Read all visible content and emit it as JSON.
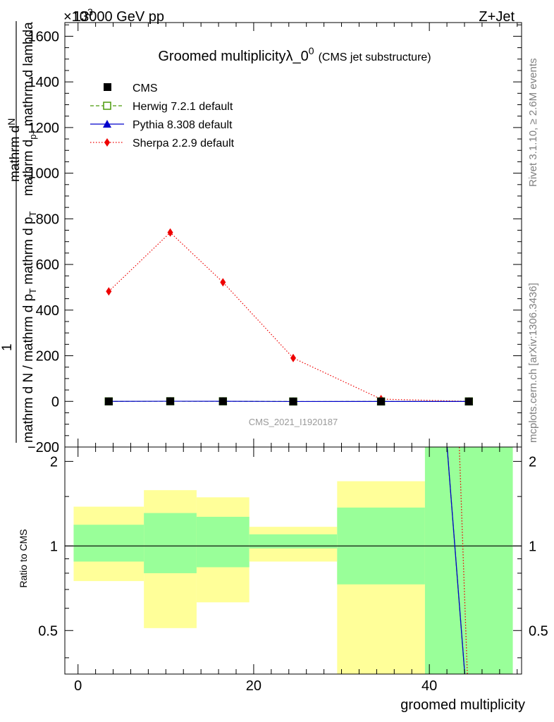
{
  "header": {
    "energy": "13000 GeV pp",
    "process": "Z+Jet",
    "exponent": "×10",
    "exponent_power": "3"
  },
  "side_labels": {
    "rivet": "Rivet 3.1.10, ≥ 2.6M events",
    "mcplots": "mcplots.cern.ch [arXiv:1306.3436]"
  },
  "colors": {
    "cms": "#000000",
    "herwig": "#4a9a0a",
    "pythia": "#0000cc",
    "sherpa": "#ee0000",
    "band_inner": "#99ff99",
    "band_outer": "#ffff99"
  },
  "chart_data": [
    {
      "type": "line",
      "title": "Groomed multiplicityλ_0",
      "title_sup": "0",
      "subtitle": "(CMS jet substructure)",
      "analysis_label": "CMS_2021_I1920187",
      "ylabel_numerator": "mathrm d",
      "ylabel_numerator_N": "N",
      "ylabel_one": "1",
      "ylabel_denominator": "mathrm d N / mathrm d p",
      "ylabel_denominator_sub": "T",
      "ylabel_denominator_tail": "mathrm d p",
      "ylabel_denominator_tail_sub": "T",
      "ylabel_garbled": "mathrm d",
      "ylabel_garbled_sub": "p",
      "ylabel_garbled_sub2": "T",
      "ylabel_garbled_tail": "mathrm d lambda",
      "ylim": [
        -200,
        1660
      ],
      "xlim": [
        -1.5,
        50.5
      ],
      "yticks": [
        -200,
        0,
        200,
        400,
        600,
        800,
        1000,
        1200,
        1400,
        1600
      ],
      "ytick_labels": [
        "−200",
        "0",
        "200",
        "400",
        "600",
        "800",
        "1000",
        "1200",
        "1400",
        "1600"
      ],
      "legend_placement": "top-left",
      "series": [
        {
          "name": "CMS",
          "key": "cms",
          "x": [
            3.5,
            10.5,
            16.5,
            24.5,
            34.5,
            44.5
          ],
          "y": [
            0,
            0.6,
            0.4,
            -0.5,
            -0.4,
            -0.3
          ]
        },
        {
          "name": "Herwig 7.2.1 default",
          "key": "herwig",
          "x": [
            3.5,
            10.5,
            16.5,
            24.5,
            34.5,
            44.5
          ],
          "y": [
            0,
            0.6,
            0.4,
            -0.5,
            -0.4,
            -0.3
          ]
        },
        {
          "name": "Pythia 8.308 default",
          "key": "pythia",
          "x": [
            3.5,
            10.5,
            16.5,
            24.5,
            34.5,
            44.5
          ],
          "y": [
            0,
            0.6,
            0.4,
            -0.5,
            -0.4,
            -0.3
          ]
        },
        {
          "name": "Sherpa 2.2.9 default",
          "key": "sherpa",
          "x": [
            3.5,
            10.5,
            16.5,
            24.5,
            34.5,
            44.5
          ],
          "y": [
            482,
            740,
            522,
            190,
            10,
            0
          ]
        }
      ]
    },
    {
      "type": "area",
      "ylabel": "Ratio to CMS",
      "xlabel": "groomed multiplicity",
      "ylim": [
        0.35,
        2.25
      ],
      "xlim": [
        -1.5,
        50.5
      ],
      "xticks": [
        0,
        20,
        40
      ],
      "xtick_labels": [
        "0",
        "20",
        "40"
      ],
      "yticks": [
        0.5,
        1,
        2
      ],
      "ytick_labels": [
        "0.5",
        "1",
        "2"
      ],
      "bands": [
        {
          "x0": -0.5,
          "x1": 7.5,
          "inner": [
            0.88,
            1.19
          ],
          "outer": [
            0.75,
            1.38
          ]
        },
        {
          "x0": 7.5,
          "x1": 13.5,
          "inner": [
            0.8,
            1.31
          ],
          "outer": [
            0.51,
            1.58
          ]
        },
        {
          "x0": 13.5,
          "x1": 19.5,
          "inner": [
            0.84,
            1.27
          ],
          "outer": [
            0.63,
            1.49
          ]
        },
        {
          "x0": 19.5,
          "x1": 29.5,
          "inner": [
            0.98,
            1.1
          ],
          "outer": [
            0.88,
            1.17
          ]
        },
        {
          "x0": 29.5,
          "x1": 39.5,
          "inner": [
            0.73,
            1.37
          ],
          "outer": [
            0.3,
            1.7
          ]
        },
        {
          "x0": 39.5,
          "x1": 49.5,
          "inner": [
            0.3,
            2.3
          ],
          "outer": [
            0.3,
            2.3
          ]
        }
      ],
      "ratio_lines": [
        {
          "key": "herwig",
          "points": [
            [
              42.0,
              2.3
            ],
            [
              44.2,
              0.3
            ]
          ]
        },
        {
          "key": "pythia",
          "points": [
            [
              42.0,
              2.3
            ],
            [
              44.2,
              0.3
            ]
          ]
        },
        {
          "key": "sherpa",
          "points": [
            [
              43.4,
              2.3
            ],
            [
              44.4,
              0.3
            ]
          ]
        }
      ]
    }
  ]
}
